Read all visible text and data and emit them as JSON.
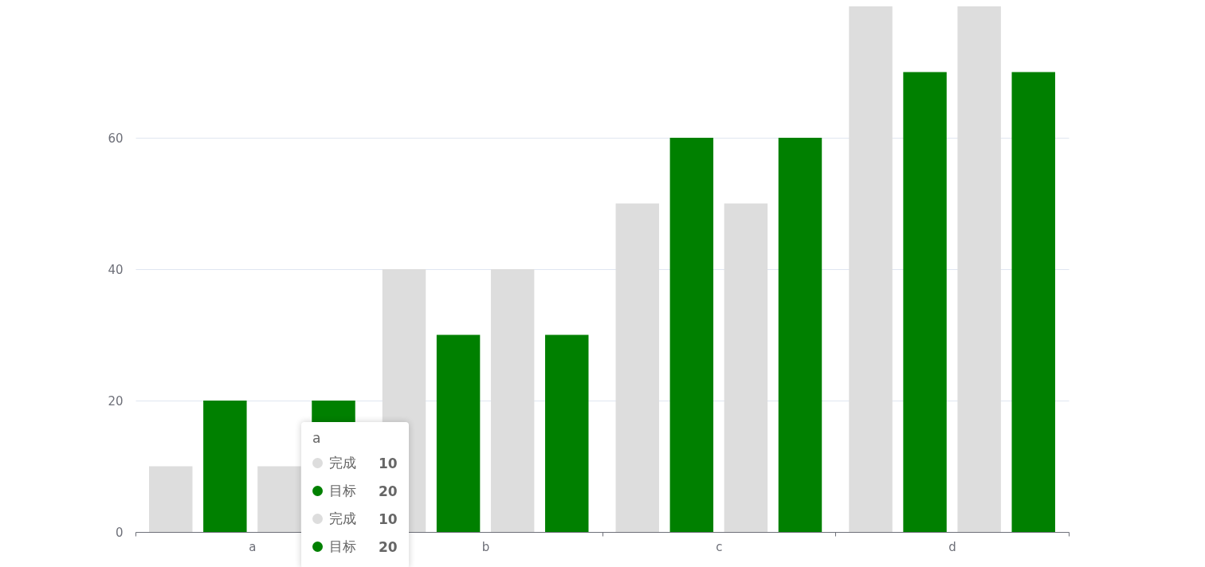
{
  "chart_data": {
    "type": "bar",
    "categories": [
      "a",
      "b",
      "c",
      "d"
    ],
    "series": [
      {
        "name": "完成",
        "color": "#dddddd",
        "values": [
          10,
          40,
          50,
          80
        ]
      },
      {
        "name": "目标",
        "color": "#008000",
        "values": [
          20,
          30,
          60,
          70
        ]
      },
      {
        "name": "完成",
        "color": "#dddddd",
        "values": [
          10,
          40,
          50,
          80
        ]
      },
      {
        "name": "目标",
        "color": "#008000",
        "values": [
          20,
          30,
          60,
          70
        ]
      }
    ],
    "ylim": [
      0,
      80
    ],
    "yticks": [
      0,
      20,
      40,
      60
    ],
    "grid": "y",
    "legend": "bottom left",
    "annotations": [
      "10",
      "20",
      "10",
      "20"
    ]
  }
}
